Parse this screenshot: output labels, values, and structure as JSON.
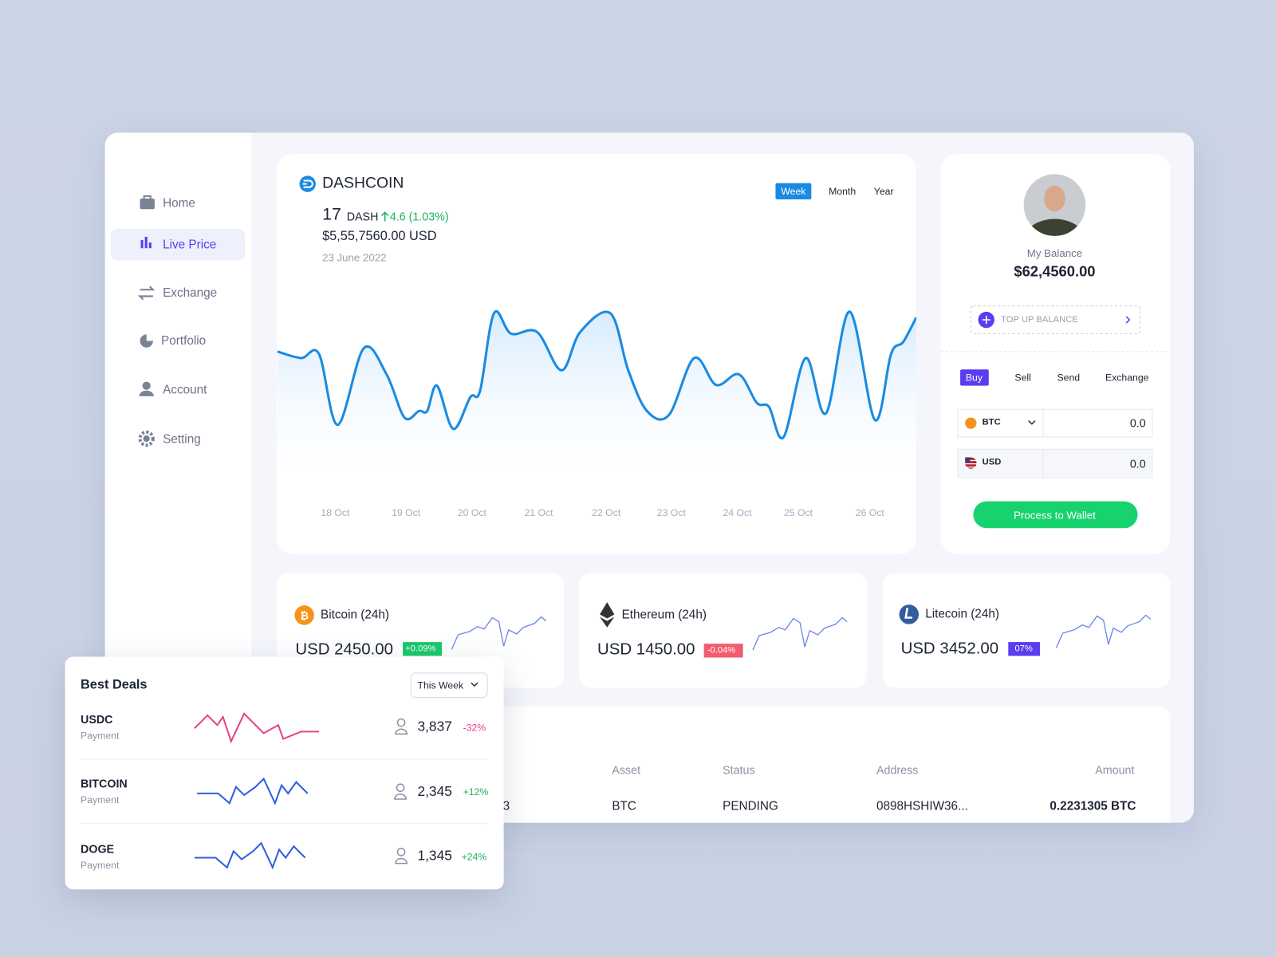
{
  "sidebar": {
    "items": [
      "Home",
      "Live Price",
      "Exchange",
      "Portfolio",
      "Account",
      "Setting"
    ]
  },
  "main_chart": {
    "coin": "DASHCOIN",
    "amount": 17,
    "unit": "DASH",
    "change": "4.6 (1.03%)",
    "usd": "$5,55,7560.00 USD",
    "date": "23 June 2022",
    "periods": [
      "Week",
      "Month",
      "Year"
    ],
    "x_labels": [
      "18 Oct",
      "19 Oct",
      "20 Oct",
      "21 Oct",
      "22 Oct",
      "23 Oct",
      "24 Oct",
      "25 Oct",
      "26 Oct"
    ]
  },
  "balance": {
    "label": "My Balance",
    "amount": "$62,4560.00",
    "top_up": "TOP UP BALANCE",
    "tabs": [
      "Buy",
      "Sell",
      "Send",
      "Exchange"
    ],
    "from": {
      "currency": "BTC",
      "value": "0.0"
    },
    "to": {
      "currency": "USD",
      "value": "0.0"
    },
    "button": "Process to Wallet"
  },
  "tickers": [
    {
      "name": "Bitcoin (24h)",
      "price": "USD 2450.00",
      "change": "+0.09%"
    },
    {
      "name": "Ethereum (24h)",
      "price": "USD 1450.00",
      "change": "-0.04%"
    },
    {
      "name": "Litecoin (24h)",
      "price": "USD 3452.00",
      "change": "07%"
    }
  ],
  "table": {
    "headers": [
      "Asset",
      "Status",
      "Address",
      "Amount"
    ],
    "rows": [
      [
        "3",
        "BTC",
        "PENDING",
        "0898HSHIW36...",
        "0.2231305 BTC"
      ]
    ]
  },
  "best_deals": {
    "title": "Best Deals",
    "filter": "This Week",
    "rows": [
      {
        "name": "USDC",
        "type": "Payment",
        "count": "3,837",
        "change": "-32%"
      },
      {
        "name": "BITCOIN",
        "type": "Payment",
        "count": "2,345",
        "change": "+12%"
      },
      {
        "name": "DOGE",
        "type": "Payment",
        "count": "1,345",
        "change": "+24%"
      }
    ]
  }
}
